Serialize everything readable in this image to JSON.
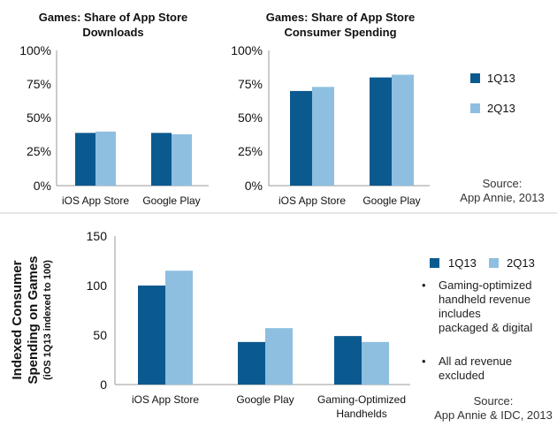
{
  "colors": {
    "s1": "#0b5a8f",
    "s2": "#8ebfe0",
    "bullet": "#e08a3c",
    "divider": "#cccccc"
  },
  "chart_data": [
    {
      "type": "bar",
      "title": "Games: Share of App Store Downloads",
      "title_lines": [
        "Games: Share of App Store",
        "Downloads"
      ],
      "categories": [
        "iOS App Store",
        "Google Play"
      ],
      "series": [
        {
          "name": "1Q13",
          "values": [
            39,
            39
          ]
        },
        {
          "name": "2Q13",
          "values": [
            40,
            38
          ]
        }
      ],
      "ylim": [
        0,
        100
      ],
      "yticks": [
        "0%",
        "25%",
        "50%",
        "75%",
        "100%"
      ],
      "grid": false
    },
    {
      "type": "bar",
      "title": "Games: Share of App Store Consumer Spending",
      "title_lines": [
        "Games: Share of App Store",
        "Consumer Spending"
      ],
      "categories": [
        "iOS App Store",
        "Google Play"
      ],
      "series": [
        {
          "name": "1Q13",
          "values": [
            70,
            80
          ]
        },
        {
          "name": "2Q13",
          "values": [
            73,
            82
          ]
        }
      ],
      "ylim": [
        0,
        100
      ],
      "yticks": [
        "0%",
        "25%",
        "50%",
        "75%",
        "100%"
      ],
      "grid": false
    },
    {
      "type": "bar",
      "ylabel": "Indexed Consumer Spending on Games",
      "ylabel_lines": [
        "Indexed Consumer",
        "Spending on Games"
      ],
      "ylabel_sub": "(iOS 1Q13 indexed to 100)",
      "categories": [
        "iOS App Store",
        "Google Play",
        "Gaming-Optimized Handhelds"
      ],
      "category_lines": [
        [
          "iOS App Store"
        ],
        [
          "Google Play"
        ],
        [
          "Gaming-Optimized",
          "Handhelds"
        ]
      ],
      "series": [
        {
          "name": "1Q13",
          "values": [
            100,
            43,
            49
          ]
        },
        {
          "name": "2Q13",
          "values": [
            115,
            57,
            43
          ]
        }
      ],
      "ylim": [
        0,
        150
      ],
      "yticks": [
        "0",
        "50",
        "100",
        "150"
      ],
      "grid": false
    }
  ],
  "legend_top": {
    "items": [
      "1Q13",
      "2Q13"
    ]
  },
  "source_top": [
    "Source:",
    "App Annie, 2013"
  ],
  "legend_bottom": {
    "items": [
      "1Q13",
      "2Q13"
    ]
  },
  "notes": [
    {
      "bullet": "•",
      "lines": [
        "Gaming-optimized",
        "handheld revenue",
        "includes",
        "packaged & digital"
      ]
    },
    {
      "bullet": "•",
      "lines": [
        "All ad revenue",
        "excluded"
      ]
    }
  ],
  "source_bottom": [
    "Source:",
    "App Annie & IDC, 2013"
  ]
}
